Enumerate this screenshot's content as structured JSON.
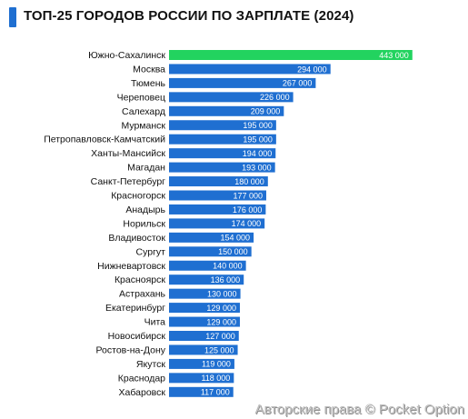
{
  "title": "ТОП-25 ГОРОДОВ РОССИИ ПО ЗАРПЛАТЕ (2024)",
  "watermark": "Авторские права © Pocket Option",
  "colors": {
    "accent": "#1f6fd1",
    "bar": "#1f6fd1",
    "highlight_bar": "#22d35f",
    "bar_label": "#ffffff",
    "category_label": "#111111"
  },
  "chart_data": {
    "type": "bar",
    "orientation": "horizontal",
    "title": "ТОП-25 ГОРОДОВ РОССИИ ПО ЗАРПЛАТЕ (2024)",
    "categories": [
      "Южно-Сахалинск",
      "Москва",
      "Тюмень",
      "Череповец",
      "Салехард",
      "Мурманск",
      "Петропавловск-Камчатский",
      "Ханты-Мансийск",
      "Магадан",
      "Санкт-Петербург",
      "Красногорск",
      "Анадырь",
      "Норильск",
      "Владивосток",
      "Сургут",
      "Нижневартовск",
      "Красноярск",
      "Астрахань",
      "Екатеринбург",
      "Чита",
      "Новосибирск",
      "Ростов-на-Дону",
      "Якутск",
      "Краснодар",
      "Хабаровск"
    ],
    "values": [
      443000,
      294000,
      267000,
      226000,
      209000,
      195000,
      195000,
      194000,
      193000,
      180000,
      177000,
      176000,
      174000,
      154000,
      150000,
      140000,
      136000,
      130000,
      129000,
      129000,
      127000,
      125000,
      119000,
      118000,
      117000
    ],
    "data_labels": [
      "443 000",
      "294 000",
      "267 000",
      "226 000",
      "209 000",
      "195 000",
      "195 000",
      "194 000",
      "193 000",
      "180 000",
      "177 000",
      "176 000",
      "174 000",
      "154 000",
      "150 000",
      "140 000",
      "136 000",
      "130 000",
      "129 000",
      "129 000",
      "127 000",
      "125 000",
      "119 000",
      "118 000",
      "117 000"
    ],
    "highlight_index": 0,
    "xlim": [
      0,
      450000
    ],
    "grid": false,
    "legend": "none"
  }
}
